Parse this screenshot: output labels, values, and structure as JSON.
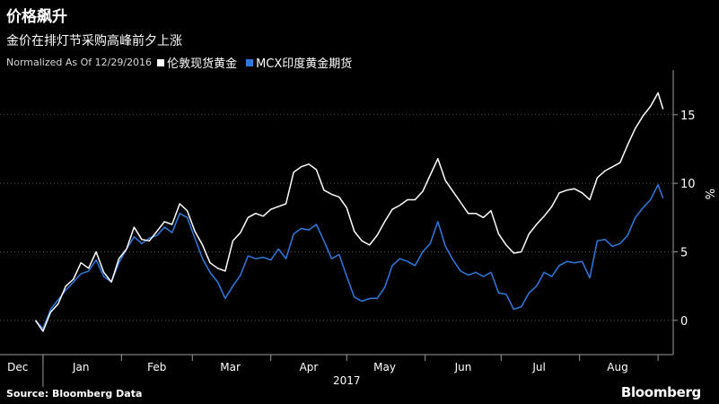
{
  "header": {
    "title": "价格飙升",
    "subtitle": "金价在排灯节采购高峰前夕上涨",
    "normalized_note": "Normalized As Of 12/29/2016"
  },
  "footer": {
    "source": "Source: Bloomberg Data",
    "brand": "Bloomberg"
  },
  "colors": {
    "background": "#000000",
    "series_white": "#ffffff",
    "series_blue": "#2f7ae0",
    "axis": "#9a9a9a",
    "grid": "#555555"
  },
  "chart_data": {
    "type": "line",
    "ylabel": "%",
    "y_ticks": [
      0,
      5,
      10,
      15
    ],
    "ylim": [
      -2.5,
      18
    ],
    "x_tick_labels": [
      "Dec",
      "Jan",
      "Feb",
      "Mar",
      "Apr",
      "May",
      "Jun",
      "Jul",
      "Aug"
    ],
    "x_year_label": "2017",
    "grid": "horizontal dotted",
    "legend_position": "top-left",
    "series": [
      {
        "name": "伦敦现货黄金",
        "color": "#ffffff",
        "points": [
          [
            "2016-12-29",
            0.0
          ],
          [
            "2017-01-01",
            -0.8
          ],
          [
            "2017-01-04",
            0.6
          ],
          [
            "2017-01-07",
            1.2
          ],
          [
            "2017-01-10",
            2.5
          ],
          [
            "2017-01-13",
            3.0
          ],
          [
            "2017-01-16",
            4.2
          ],
          [
            "2017-01-19",
            3.8
          ],
          [
            "2017-01-22",
            5.0
          ],
          [
            "2017-01-25",
            3.5
          ],
          [
            "2017-01-28",
            2.8
          ],
          [
            "2017-01-31",
            4.5
          ],
          [
            "2017-02-03",
            5.2
          ],
          [
            "2017-02-06",
            6.8
          ],
          [
            "2017-02-09",
            5.9
          ],
          [
            "2017-02-12",
            5.8
          ],
          [
            "2017-02-15",
            6.5
          ],
          [
            "2017-02-18",
            7.2
          ],
          [
            "2017-02-21",
            7.0
          ],
          [
            "2017-02-24",
            8.5
          ],
          [
            "2017-02-27",
            8.0
          ],
          [
            "2017-03-02",
            6.5
          ],
          [
            "2017-03-05",
            5.5
          ],
          [
            "2017-03-08",
            4.2
          ],
          [
            "2017-03-11",
            3.8
          ],
          [
            "2017-03-14",
            3.6
          ],
          [
            "2017-03-17",
            5.8
          ],
          [
            "2017-03-20",
            6.4
          ],
          [
            "2017-03-23",
            7.5
          ],
          [
            "2017-03-26",
            7.8
          ],
          [
            "2017-03-29",
            7.6
          ],
          [
            "2017-04-01",
            8.1
          ],
          [
            "2017-04-04",
            8.3
          ],
          [
            "2017-04-07",
            8.5
          ],
          [
            "2017-04-10",
            10.8
          ],
          [
            "2017-04-13",
            11.2
          ],
          [
            "2017-04-16",
            11.4
          ],
          [
            "2017-04-19",
            11.0
          ],
          [
            "2017-04-22",
            9.5
          ],
          [
            "2017-04-25",
            9.2
          ],
          [
            "2017-04-28",
            9.0
          ],
          [
            "2017-05-01",
            8.2
          ],
          [
            "2017-05-04",
            6.5
          ],
          [
            "2017-05-07",
            5.8
          ],
          [
            "2017-05-10",
            5.5
          ],
          [
            "2017-05-13",
            6.2
          ],
          [
            "2017-05-16",
            7.2
          ],
          [
            "2017-05-19",
            8.1
          ],
          [
            "2017-05-22",
            8.4
          ],
          [
            "2017-05-25",
            8.8
          ],
          [
            "2017-05-28",
            8.8
          ],
          [
            "2017-05-31",
            9.4
          ],
          [
            "2017-06-03",
            10.6
          ],
          [
            "2017-06-06",
            11.8
          ],
          [
            "2017-06-09",
            10.2
          ],
          [
            "2017-06-12",
            9.4
          ],
          [
            "2017-06-15",
            8.6
          ],
          [
            "2017-06-18",
            7.8
          ],
          [
            "2017-06-21",
            7.8
          ],
          [
            "2017-06-24",
            7.5
          ],
          [
            "2017-06-27",
            8.0
          ],
          [
            "2017-06-30",
            6.3
          ],
          [
            "2017-07-03",
            5.5
          ],
          [
            "2017-07-06",
            4.9
          ],
          [
            "2017-07-09",
            5.0
          ],
          [
            "2017-07-12",
            6.3
          ],
          [
            "2017-07-15",
            7.0
          ],
          [
            "2017-07-18",
            7.6
          ],
          [
            "2017-07-21",
            8.3
          ],
          [
            "2017-07-24",
            9.3
          ],
          [
            "2017-07-27",
            9.5
          ],
          [
            "2017-07-30",
            9.6
          ],
          [
            "2017-08-02",
            9.3
          ],
          [
            "2017-08-05",
            8.8
          ],
          [
            "2017-08-08",
            10.4
          ],
          [
            "2017-08-11",
            10.9
          ],
          [
            "2017-08-14",
            11.2
          ],
          [
            "2017-08-17",
            11.5
          ],
          [
            "2017-08-20",
            12.8
          ],
          [
            "2017-08-23",
            14.0
          ],
          [
            "2017-08-26",
            14.9
          ],
          [
            "2017-08-29",
            15.6
          ],
          [
            "2017-09-01",
            16.6
          ],
          [
            "2017-09-03",
            15.4
          ]
        ]
      },
      {
        "name": "MCX印度黄金期货",
        "color": "#2f7ae0",
        "points": [
          [
            "2016-12-29",
            0.0
          ],
          [
            "2017-01-01",
            -0.6
          ],
          [
            "2017-01-04",
            0.8
          ],
          [
            "2017-01-07",
            1.5
          ],
          [
            "2017-01-10",
            2.2
          ],
          [
            "2017-01-13",
            2.8
          ],
          [
            "2017-01-16",
            3.4
          ],
          [
            "2017-01-19",
            3.6
          ],
          [
            "2017-01-22",
            4.4
          ],
          [
            "2017-01-25",
            3.2
          ],
          [
            "2017-01-28",
            2.8
          ],
          [
            "2017-01-31",
            4.2
          ],
          [
            "2017-02-03",
            5.2
          ],
          [
            "2017-02-06",
            6.1
          ],
          [
            "2017-02-09",
            5.6
          ],
          [
            "2017-02-12",
            6.0
          ],
          [
            "2017-02-15",
            6.2
          ],
          [
            "2017-02-18",
            6.8
          ],
          [
            "2017-02-21",
            6.4
          ],
          [
            "2017-02-24",
            7.8
          ],
          [
            "2017-02-27",
            7.5
          ],
          [
            "2017-03-02",
            6.0
          ],
          [
            "2017-03-05",
            4.5
          ],
          [
            "2017-03-08",
            3.5
          ],
          [
            "2017-03-11",
            2.8
          ],
          [
            "2017-03-14",
            1.6
          ],
          [
            "2017-03-17",
            2.5
          ],
          [
            "2017-03-20",
            3.3
          ],
          [
            "2017-03-23",
            4.7
          ],
          [
            "2017-03-26",
            4.5
          ],
          [
            "2017-03-29",
            4.6
          ],
          [
            "2017-04-01",
            4.4
          ],
          [
            "2017-04-04",
            5.2
          ],
          [
            "2017-04-07",
            4.5
          ],
          [
            "2017-04-10",
            6.3
          ],
          [
            "2017-04-13",
            6.7
          ],
          [
            "2017-04-16",
            6.6
          ],
          [
            "2017-04-19",
            7.0
          ],
          [
            "2017-04-22",
            5.8
          ],
          [
            "2017-04-25",
            4.5
          ],
          [
            "2017-04-28",
            4.8
          ],
          [
            "2017-05-01",
            3.2
          ],
          [
            "2017-05-04",
            1.7
          ],
          [
            "2017-05-07",
            1.4
          ],
          [
            "2017-05-10",
            1.6
          ],
          [
            "2017-05-13",
            1.6
          ],
          [
            "2017-05-16",
            2.4
          ],
          [
            "2017-05-19",
            4.0
          ],
          [
            "2017-05-22",
            4.5
          ],
          [
            "2017-05-25",
            4.3
          ],
          [
            "2017-05-28",
            4.0
          ],
          [
            "2017-05-31",
            5.0
          ],
          [
            "2017-06-03",
            5.6
          ],
          [
            "2017-06-06",
            7.2
          ],
          [
            "2017-06-09",
            5.4
          ],
          [
            "2017-06-12",
            4.4
          ],
          [
            "2017-06-15",
            3.6
          ],
          [
            "2017-06-18",
            3.3
          ],
          [
            "2017-06-21",
            3.5
          ],
          [
            "2017-06-24",
            3.2
          ],
          [
            "2017-06-27",
            3.5
          ],
          [
            "2017-06-30",
            2.0
          ],
          [
            "2017-07-03",
            1.9
          ],
          [
            "2017-07-06",
            0.8
          ],
          [
            "2017-07-09",
            1.0
          ],
          [
            "2017-07-12",
            2.0
          ],
          [
            "2017-07-15",
            2.5
          ],
          [
            "2017-07-18",
            3.5
          ],
          [
            "2017-07-21",
            3.2
          ],
          [
            "2017-07-24",
            4.0
          ],
          [
            "2017-07-27",
            4.3
          ],
          [
            "2017-07-30",
            4.2
          ],
          [
            "2017-08-02",
            4.3
          ],
          [
            "2017-08-05",
            3.1
          ],
          [
            "2017-08-08",
            5.8
          ],
          [
            "2017-08-11",
            5.9
          ],
          [
            "2017-08-14",
            5.4
          ],
          [
            "2017-08-17",
            5.6
          ],
          [
            "2017-08-20",
            6.2
          ],
          [
            "2017-08-23",
            7.5
          ],
          [
            "2017-08-26",
            8.2
          ],
          [
            "2017-08-29",
            8.8
          ],
          [
            "2017-09-01",
            9.9
          ],
          [
            "2017-09-03",
            8.9
          ]
        ]
      }
    ]
  }
}
